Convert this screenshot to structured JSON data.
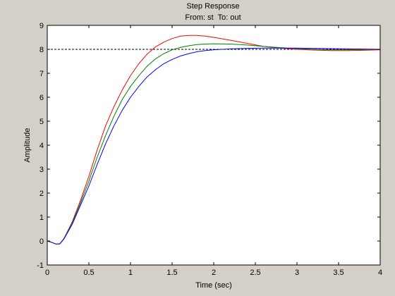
{
  "chart_data": {
    "type": "line",
    "title": "Step Response",
    "subtitle": "From: st  To: out",
    "xlabel": "Time (sec)",
    "ylabel": "Amplitude",
    "xlim": [
      0,
      4
    ],
    "ylim": [
      -1,
      9
    ],
    "xticks": [
      0,
      0.5,
      1,
      1.5,
      2,
      2.5,
      3,
      3.5,
      4
    ],
    "xtick_labels": [
      "0",
      "0.5",
      "1",
      "1.5",
      "2",
      "2.5",
      "3",
      "3.5",
      "4"
    ],
    "yticks": [
      -1,
      0,
      1,
      2,
      3,
      4,
      5,
      6,
      7,
      8,
      9
    ],
    "ytick_labels": [
      "-1",
      "0",
      "1",
      "2",
      "3",
      "4",
      "5",
      "6",
      "7",
      "8",
      "9"
    ],
    "grid": false,
    "legend": "none",
    "reference_line": {
      "y": 8,
      "style": "dashed",
      "color": "#000000"
    },
    "series": [
      {
        "color": "#ff0000",
        "x": [
          0,
          0.05,
          0.1,
          0.15,
          0.2,
          0.3,
          0.4,
          0.5,
          0.6,
          0.7,
          0.8,
          0.9,
          1.0,
          1.1,
          1.2,
          1.3,
          1.4,
          1.5,
          1.6,
          1.7,
          1.8,
          1.9,
          2.0,
          2.2,
          2.4,
          2.6,
          2.8,
          3.0,
          3.2,
          3.4,
          3.6,
          3.8,
          4.0
        ],
        "y": [
          0,
          -0.05,
          -0.12,
          -0.12,
          0.1,
          0.8,
          1.7,
          2.7,
          3.8,
          4.8,
          5.6,
          6.3,
          6.9,
          7.4,
          7.8,
          8.1,
          8.3,
          8.45,
          8.55,
          8.58,
          8.58,
          8.55,
          8.5,
          8.38,
          8.25,
          8.12,
          8.05,
          8.0,
          7.97,
          7.95,
          7.95,
          7.96,
          7.98
        ]
      },
      {
        "color": "#008000",
        "x": [
          0,
          0.05,
          0.1,
          0.15,
          0.2,
          0.3,
          0.4,
          0.5,
          0.6,
          0.7,
          0.8,
          0.9,
          1.0,
          1.1,
          1.2,
          1.3,
          1.4,
          1.5,
          1.6,
          1.7,
          1.8,
          1.9,
          2.0,
          2.2,
          2.4,
          2.6,
          2.8,
          3.0,
          3.2,
          3.4,
          3.6,
          3.8,
          4.0
        ],
        "y": [
          0,
          -0.05,
          -0.12,
          -0.12,
          0.1,
          0.75,
          1.6,
          2.5,
          3.5,
          4.4,
          5.2,
          5.9,
          6.45,
          6.9,
          7.3,
          7.6,
          7.82,
          7.98,
          8.08,
          8.15,
          8.2,
          8.22,
          8.23,
          8.22,
          8.18,
          8.12,
          8.07,
          8.03,
          8.0,
          7.98,
          7.98,
          7.99,
          8.0
        ]
      },
      {
        "color": "#0000ff",
        "x": [
          0,
          0.05,
          0.1,
          0.15,
          0.2,
          0.3,
          0.4,
          0.5,
          0.6,
          0.7,
          0.8,
          0.9,
          1.0,
          1.1,
          1.2,
          1.3,
          1.4,
          1.5,
          1.6,
          1.7,
          1.8,
          1.9,
          2.0,
          2.2,
          2.4,
          2.6,
          2.8,
          3.0,
          3.2,
          3.4,
          3.6,
          3.8,
          4.0
        ],
        "y": [
          0,
          -0.05,
          -0.12,
          -0.12,
          0.08,
          0.7,
          1.5,
          2.3,
          3.2,
          4.05,
          4.8,
          5.45,
          6.0,
          6.45,
          6.85,
          7.15,
          7.4,
          7.58,
          7.72,
          7.82,
          7.9,
          7.95,
          7.98,
          8.02,
          8.04,
          8.05,
          8.05,
          8.05,
          8.04,
          8.03,
          8.02,
          8.01,
          8.0
        ]
      }
    ]
  }
}
